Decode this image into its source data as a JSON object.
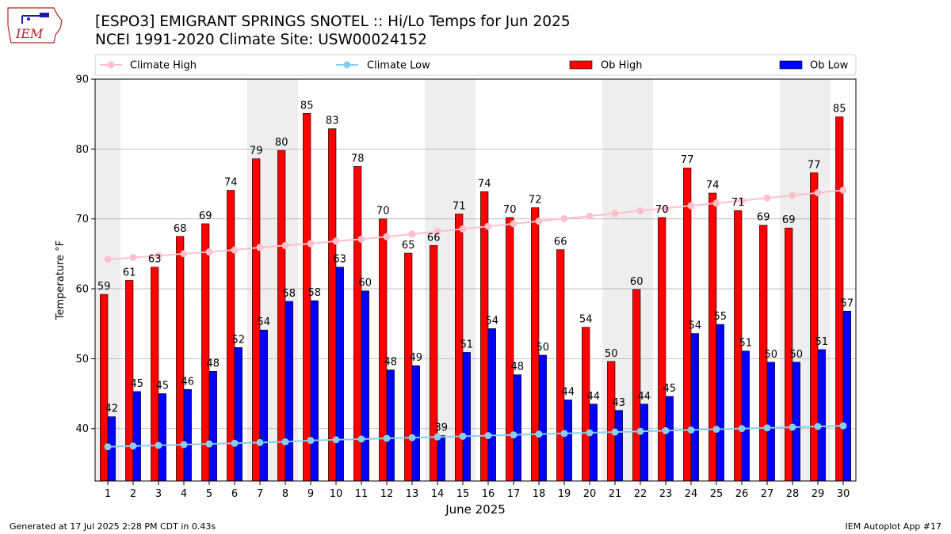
{
  "header": {
    "title_line1": "[ESPO3] EMIGRANT SPRINGS SNOTEL :: Hi/Lo Temps for Jun 2025",
    "title_line2": "NCEI 1991-2020 Climate Site: USW00024152",
    "logo_text": "IEM"
  },
  "footer": {
    "generated": "Generated at 17 Jul 2025 2:28 PM CDT in 0.43s",
    "app": "IEM Autoplot App #17"
  },
  "colors": {
    "ob_high": "#ff0000",
    "ob_low": "#0000ff",
    "climate_high": "#ffc0cb",
    "climate_low": "#87ceeb",
    "weekend_band": "#eeeeee",
    "grid": "#b0b0b0"
  },
  "chart_data": {
    "type": "bar",
    "xlabel": "June 2025",
    "ylabel": "Temperature °F",
    "ylim": [
      32.5,
      90
    ],
    "yticks": [
      40,
      50,
      60,
      70,
      80,
      90
    ],
    "grid": "horizontal",
    "legend_position": "top",
    "categories": [
      "1",
      "2",
      "3",
      "4",
      "5",
      "6",
      "7",
      "8",
      "9",
      "10",
      "11",
      "12",
      "13",
      "14",
      "15",
      "16",
      "17",
      "18",
      "19",
      "20",
      "21",
      "22",
      "23",
      "24",
      "25",
      "26",
      "27",
      "28",
      "29",
      "30"
    ],
    "shaded_days": [
      1,
      7,
      8,
      14,
      15,
      21,
      22,
      28,
      29
    ],
    "series": [
      {
        "name": "Ob High",
        "kind": "bar",
        "values": [
          59.2,
          61.2,
          63.1,
          67.5,
          69.3,
          74.1,
          78.6,
          79.8,
          85.1,
          82.9,
          77.5,
          70.0,
          65.1,
          66.2,
          70.7,
          73.9,
          70.2,
          71.6,
          65.6,
          54.5,
          49.6,
          59.9,
          70.2,
          77.3,
          73.7,
          71.2,
          69.1,
          68.7,
          76.6,
          84.6
        ],
        "labels": [
          "59",
          "61",
          "63",
          "68",
          "69",
          "74",
          "79",
          "80",
          "85",
          "83",
          "78",
          "70",
          "65",
          "66",
          "71",
          "74",
          "70",
          "72",
          "66",
          "54",
          "50",
          "60",
          "70",
          "77",
          "74",
          "71",
          "69",
          "69",
          "77",
          "85"
        ]
      },
      {
        "name": "Ob Low",
        "kind": "bar",
        "values": [
          41.7,
          45.3,
          45.0,
          45.6,
          48.2,
          51.6,
          54.1,
          58.2,
          58.3,
          63.1,
          59.7,
          48.4,
          49.0,
          39.0,
          50.9,
          54.3,
          47.7,
          50.5,
          44.1,
          43.5,
          42.6,
          43.5,
          44.6,
          53.6,
          54.9,
          51.1,
          49.5,
          49.5,
          51.3,
          56.8
        ],
        "labels": [
          "42",
          "45",
          "45",
          "46",
          "48",
          "52",
          "54",
          "58",
          "58",
          "63",
          "60",
          "48",
          "49",
          "39",
          "51",
          "54",
          "48",
          "50",
          "44",
          "44",
          "43",
          "44",
          "45",
          "54",
          "55",
          "51",
          "50",
          "50",
          "51",
          "57"
        ]
      },
      {
        "name": "Climate High",
        "kind": "line",
        "values": [
          64.2,
          64.4,
          64.6,
          64.8,
          65.0,
          65.2,
          65.5,
          65.7,
          65.9,
          66.2,
          66.4,
          66.7,
          67.0,
          67.3,
          67.6,
          67.9,
          68.2,
          68.5,
          68.8,
          69.1,
          69.4,
          69.7,
          70.0,
          70.3,
          70.6,
          70.9,
          71.2,
          71.5,
          71.8,
          72.1
        ],
        "display_offset": 2
      },
      {
        "name": "Climate Low",
        "kind": "line",
        "values": [
          37.4,
          37.5,
          37.6,
          37.7,
          37.8,
          37.9,
          38.0,
          38.1,
          38.3,
          38.4,
          38.5,
          38.6,
          38.7,
          38.8,
          38.9,
          39.0,
          39.1,
          39.2,
          39.3,
          39.4,
          39.5,
          39.6,
          39.7,
          39.8,
          39.9,
          40.0,
          40.1,
          40.2,
          40.3,
          40.4
        ]
      }
    ]
  }
}
